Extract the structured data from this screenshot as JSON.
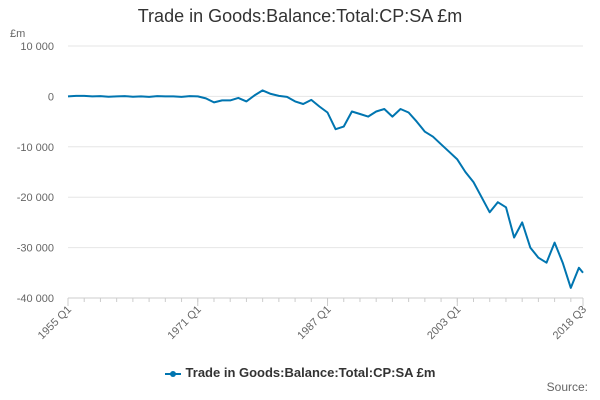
{
  "chart_data": {
    "type": "line",
    "title": "Trade in Goods:Balance:Total:CP:SA £m",
    "ylabel": "£m",
    "xlabel": "",
    "ylim": [
      -40000,
      10000
    ],
    "yticks": [
      10000,
      0,
      -10000,
      -20000,
      -30000,
      -40000
    ],
    "ytick_labels": [
      "10 000",
      "0",
      "-10 000",
      "-20 000",
      "-30 000",
      "-40 000"
    ],
    "xlim": [
      1955.0,
      2018.5
    ],
    "xticks": [
      1955.0,
      1971.0,
      1987.0,
      2003.0,
      2018.5
    ],
    "xtick_labels": [
      "1955 Q1",
      "1971 Q1",
      "1987 Q1",
      "2003 Q1",
      "2018 Q3"
    ],
    "grid": true,
    "legend_position": "bottom",
    "color": "#0075b0",
    "series": [
      {
        "name": "Trade in Goods:Balance:Total:CP:SA £m",
        "x": [
          1955,
          1956,
          1957,
          1958,
          1959,
          1960,
          1961,
          1962,
          1963,
          1964,
          1965,
          1966,
          1967,
          1968,
          1969,
          1970,
          1971,
          1972,
          1973,
          1974,
          1975,
          1976,
          1977,
          1978,
          1979,
          1980,
          1981,
          1982,
          1983,
          1984,
          1985,
          1986,
          1987,
          1988,
          1989,
          1990,
          1991,
          1992,
          1993,
          1994,
          1995,
          1996,
          1997,
          1998,
          1999,
          2000,
          2001,
          2002,
          2003,
          2004,
          2005,
          2006,
          2007,
          2008,
          2009,
          2010,
          2011,
          2012,
          2013,
          2014,
          2015,
          2016,
          2017,
          2018,
          2018.5
        ],
        "y": [
          0,
          100,
          100,
          0,
          50,
          -50,
          0,
          50,
          -50,
          0,
          -100,
          50,
          0,
          0,
          -100,
          50,
          0,
          -400,
          -1200,
          -800,
          -800,
          -300,
          -1000,
          200,
          1200,
          500,
          100,
          -100,
          -1000,
          -1500,
          -700,
          -2000,
          -3200,
          -6500,
          -6000,
          -3000,
          -3500,
          -4000,
          -3000,
          -2500,
          -4000,
          -2500,
          -3200,
          -5000,
          -7000,
          -8000,
          -9500,
          -11000,
          -12500,
          -15000,
          -17000,
          -20000,
          -23000,
          -21000,
          -22000,
          -28000,
          -25000,
          -30000,
          -32000,
          -33000,
          -29000,
          -33000,
          -38000,
          -34000,
          -35000
        ]
      }
    ]
  },
  "source_label": "Source:"
}
